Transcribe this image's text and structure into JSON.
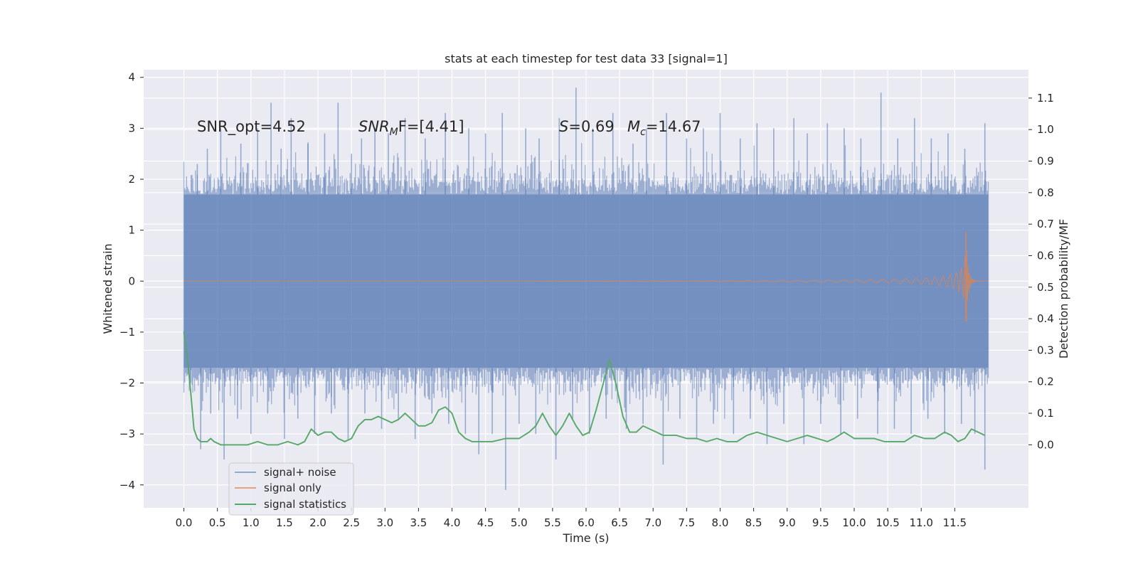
{
  "chart_data": {
    "type": "line",
    "title": "stats at each timestep for test data 33 [signal=1]",
    "xlabel": "Time (s)",
    "ylabel": "Whitened strain",
    "ylabel_right": "Detection probability/MF",
    "xlim": [
      -0.6,
      12.6
    ],
    "ylim": [
      -4.45,
      4.15
    ],
    "ylim_right": [
      -0.2,
      1.19
    ],
    "x_ticks": [
      "0.0",
      "0.5",
      "1.0",
      "1.5",
      "2.0",
      "2.5",
      "3.0",
      "3.5",
      "4.0",
      "4.5",
      "5.0",
      "5.5",
      "6.0",
      "6.5",
      "7.0",
      "7.5",
      "8.0",
      "8.5",
      "9.0",
      "9.5",
      "10.0",
      "10.5",
      "11.0",
      "11.5"
    ],
    "y_ticks": [
      "−4",
      "−3",
      "−2",
      "−1",
      "0",
      "1",
      "2",
      "3",
      "4"
    ],
    "y_ticks_right": [
      "0.0",
      "0.1",
      "0.2",
      "0.3",
      "0.4",
      "0.5",
      "0.6",
      "0.7",
      "0.8",
      "0.9",
      "1.0",
      "1.1"
    ],
    "grid": true,
    "legend_position": "lower-left",
    "annotations": {
      "snr_opt": "SNR_opt=4.52",
      "snr_mf_main": "SNR",
      "snr_mf_sub": "M",
      "snr_mf_rest": "F=[4.41]",
      "s_symbol": "S",
      "s_value": "=0.69",
      "mc_symbol": "M",
      "mc_sub": "c",
      "mc_value": "=14.67"
    },
    "colors": {
      "noise": "#4c72b0",
      "signal": "#dd8452",
      "stats": "#55a868",
      "background": "#eaeaf2"
    },
    "series": [
      {
        "name": "signal+ noise",
        "kind": "noise-band",
        "x_range": [
          0.0,
          12.0
        ],
        "band_typical": [
          -1.7,
          1.7
        ],
        "spikes": [
          [
            0.2,
            2.3
          ],
          [
            0.35,
            2.6
          ],
          [
            0.55,
            3.0
          ],
          [
            0.85,
            2.7
          ],
          [
            1.1,
            3.0
          ],
          [
            1.3,
            3.5
          ],
          [
            1.45,
            2.6
          ],
          [
            1.6,
            3.2
          ],
          [
            1.85,
            2.7
          ],
          [
            2.1,
            2.9
          ],
          [
            2.3,
            3.5
          ],
          [
            2.5,
            2.5
          ],
          [
            2.65,
            2.8
          ],
          [
            2.85,
            3.0
          ],
          [
            3.05,
            2.9
          ],
          [
            3.3,
            3.2
          ],
          [
            3.6,
            2.8
          ],
          [
            3.9,
            3.3
          ],
          [
            4.25,
            3.0
          ],
          [
            4.5,
            2.9
          ],
          [
            4.75,
            3.3
          ],
          [
            5.1,
            3.0
          ],
          [
            5.3,
            2.8
          ],
          [
            5.6,
            3.2
          ],
          [
            5.85,
            3.8
          ],
          [
            6.1,
            3.0
          ],
          [
            6.4,
            3.3
          ],
          [
            6.7,
            2.7
          ],
          [
            6.9,
            3.0
          ],
          [
            7.2,
            3.3
          ],
          [
            7.5,
            2.8
          ],
          [
            7.75,
            3.0
          ],
          [
            8.0,
            3.3
          ],
          [
            8.3,
            2.8
          ],
          [
            8.55,
            3.1
          ],
          [
            8.8,
            3.0
          ],
          [
            9.1,
            3.2
          ],
          [
            9.3,
            2.9
          ],
          [
            9.6,
            3.1
          ],
          [
            9.85,
            3.0
          ],
          [
            10.1,
            2.8
          ],
          [
            10.4,
            3.7
          ],
          [
            10.65,
            2.8
          ],
          [
            10.9,
            3.2
          ],
          [
            11.15,
            2.8
          ],
          [
            11.4,
            2.9
          ],
          [
            11.65,
            2.6
          ],
          [
            11.95,
            3.1
          ],
          [
            0.1,
            -2.0
          ],
          [
            0.25,
            -3.3
          ],
          [
            0.4,
            -2.6
          ],
          [
            0.6,
            -3.5
          ],
          [
            0.8,
            -2.7
          ],
          [
            1.0,
            -3.0
          ],
          [
            1.25,
            -2.6
          ],
          [
            1.5,
            -3.1
          ],
          [
            1.7,
            -2.7
          ],
          [
            1.95,
            -3.0
          ],
          [
            2.2,
            -2.6
          ],
          [
            2.45,
            -3.1
          ],
          [
            2.7,
            -2.6
          ],
          [
            2.95,
            -2.9
          ],
          [
            3.2,
            -2.7
          ],
          [
            3.45,
            -3.1
          ],
          [
            3.7,
            -2.6
          ],
          [
            3.95,
            -2.8
          ],
          [
            4.2,
            -3.0
          ],
          [
            4.4,
            -3.4
          ],
          [
            4.6,
            -3.0
          ],
          [
            4.8,
            -4.1
          ],
          [
            5.0,
            -2.8
          ],
          [
            5.25,
            -3.0
          ],
          [
            5.55,
            -3.5
          ],
          [
            5.8,
            -2.7
          ],
          [
            6.05,
            -3.0
          ],
          [
            6.3,
            -2.7
          ],
          [
            6.6,
            -2.9
          ],
          [
            6.85,
            -2.8
          ],
          [
            7.15,
            -3.6
          ],
          [
            7.4,
            -2.7
          ],
          [
            7.65,
            -3.1
          ],
          [
            7.9,
            -2.8
          ],
          [
            8.2,
            -3.0
          ],
          [
            8.45,
            -2.7
          ],
          [
            8.7,
            -3.2
          ],
          [
            8.95,
            -2.8
          ],
          [
            9.25,
            -3.2
          ],
          [
            9.5,
            -2.8
          ],
          [
            9.8,
            -3.0
          ],
          [
            10.05,
            -2.7
          ],
          [
            10.35,
            -3.0
          ],
          [
            10.6,
            -2.9
          ],
          [
            10.85,
            -3.0
          ],
          [
            11.1,
            -2.7
          ],
          [
            11.35,
            -3.0
          ],
          [
            11.6,
            -2.8
          ],
          [
            11.8,
            -3.0
          ],
          [
            11.95,
            -3.7
          ]
        ]
      },
      {
        "name": "signal only",
        "kind": "chirp",
        "x_range": [
          0.0,
          12.0
        ],
        "merger_time": 11.68,
        "merger_amplitude": [
          -0.8,
          0.97
        ]
      },
      {
        "name": "signal statistics",
        "kind": "line",
        "axis": "right",
        "points": [
          [
            0.0,
            0.36
          ],
          [
            0.05,
            0.28
          ],
          [
            0.1,
            0.17
          ],
          [
            0.15,
            0.05
          ],
          [
            0.2,
            0.02
          ],
          [
            0.25,
            0.01
          ],
          [
            0.35,
            0.01
          ],
          [
            0.4,
            0.02
          ],
          [
            0.45,
            0.01
          ],
          [
            0.55,
            0.0
          ],
          [
            0.65,
            0.0
          ],
          [
            0.8,
            0.0
          ],
          [
            0.95,
            0.0
          ],
          [
            1.1,
            0.01
          ],
          [
            1.25,
            0.0
          ],
          [
            1.4,
            0.0
          ],
          [
            1.55,
            0.01
          ],
          [
            1.7,
            0.0
          ],
          [
            1.8,
            0.01
          ],
          [
            1.9,
            0.05
          ],
          [
            2.0,
            0.03
          ],
          [
            2.1,
            0.04
          ],
          [
            2.2,
            0.04
          ],
          [
            2.3,
            0.02
          ],
          [
            2.4,
            0.01
          ],
          [
            2.5,
            0.02
          ],
          [
            2.6,
            0.06
          ],
          [
            2.7,
            0.08
          ],
          [
            2.8,
            0.08
          ],
          [
            2.9,
            0.09
          ],
          [
            3.0,
            0.08
          ],
          [
            3.1,
            0.07
          ],
          [
            3.2,
            0.08
          ],
          [
            3.3,
            0.1
          ],
          [
            3.4,
            0.08
          ],
          [
            3.5,
            0.06
          ],
          [
            3.6,
            0.06
          ],
          [
            3.7,
            0.07
          ],
          [
            3.8,
            0.11
          ],
          [
            3.9,
            0.12
          ],
          [
            4.0,
            0.1
          ],
          [
            4.1,
            0.04
          ],
          [
            4.2,
            0.02
          ],
          [
            4.3,
            0.01
          ],
          [
            4.5,
            0.01
          ],
          [
            4.6,
            0.01
          ],
          [
            4.8,
            0.02
          ],
          [
            4.9,
            0.02
          ],
          [
            5.0,
            0.02
          ],
          [
            5.15,
            0.04
          ],
          [
            5.25,
            0.06
          ],
          [
            5.35,
            0.1
          ],
          [
            5.45,
            0.06
          ],
          [
            5.55,
            0.03
          ],
          [
            5.65,
            0.06
          ],
          [
            5.75,
            0.1
          ],
          [
            5.85,
            0.06
          ],
          [
            5.95,
            0.03
          ],
          [
            6.05,
            0.04
          ],
          [
            6.15,
            0.11
          ],
          [
            6.25,
            0.19
          ],
          [
            6.35,
            0.27
          ],
          [
            6.45,
            0.19
          ],
          [
            6.55,
            0.09
          ],
          [
            6.65,
            0.04
          ],
          [
            6.75,
            0.04
          ],
          [
            6.85,
            0.06
          ],
          [
            6.95,
            0.05
          ],
          [
            7.05,
            0.04
          ],
          [
            7.15,
            0.03
          ],
          [
            7.25,
            0.03
          ],
          [
            7.35,
            0.03
          ],
          [
            7.5,
            0.02
          ],
          [
            7.65,
            0.02
          ],
          [
            7.8,
            0.01
          ],
          [
            7.95,
            0.02
          ],
          [
            8.1,
            0.01
          ],
          [
            8.25,
            0.01
          ],
          [
            8.4,
            0.03
          ],
          [
            8.55,
            0.04
          ],
          [
            8.7,
            0.03
          ],
          [
            8.85,
            0.02
          ],
          [
            9.0,
            0.01
          ],
          [
            9.15,
            0.02
          ],
          [
            9.3,
            0.03
          ],
          [
            9.45,
            0.02
          ],
          [
            9.6,
            0.01
          ],
          [
            9.7,
            0.02
          ],
          [
            9.85,
            0.04
          ],
          [
            10.0,
            0.02
          ],
          [
            10.15,
            0.02
          ],
          [
            10.3,
            0.02
          ],
          [
            10.45,
            0.01
          ],
          [
            10.6,
            0.01
          ],
          [
            10.75,
            0.01
          ],
          [
            10.9,
            0.03
          ],
          [
            11.05,
            0.02
          ],
          [
            11.2,
            0.02
          ],
          [
            11.35,
            0.04
          ],
          [
            11.45,
            0.03
          ],
          [
            11.55,
            0.01
          ],
          [
            11.65,
            0.02
          ],
          [
            11.75,
            0.05
          ],
          [
            11.85,
            0.04
          ],
          [
            11.95,
            0.03
          ]
        ]
      }
    ]
  }
}
